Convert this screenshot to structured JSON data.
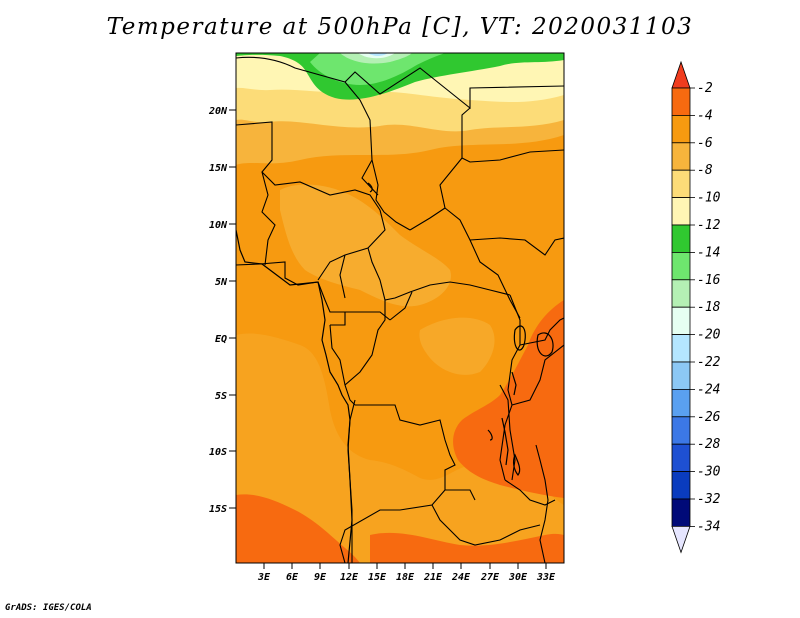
{
  "title": "Temperature at 500hPa [C], VT: 2020031103",
  "credit": "GrADS: IGES/COLA",
  "map": {
    "lat_labels": [
      "20N",
      "15N",
      "10N",
      "5N",
      "EQ",
      "5S",
      "10S",
      "15S"
    ],
    "lon_labels": [
      "3E",
      "6E",
      "9E",
      "12E",
      "15E",
      "18E",
      "21E",
      "24E",
      "27E",
      "30E",
      "33E"
    ]
  },
  "colorbar": {
    "labels": [
      "-2",
      "-4",
      "-6",
      "-8",
      "-10",
      "-12",
      "-14",
      "-16",
      "-18",
      "-20",
      "-22",
      "-24",
      "-26",
      "-28",
      "-30",
      "-32",
      "-34"
    ],
    "colors": [
      "#f03c1e",
      "#f76a10",
      "#f79a10",
      "#f7b43c",
      "#fcdc78",
      "#fff6b4",
      "#30c830",
      "#6ee66e",
      "#b4f0b4",
      "#e6fff2",
      "#b4e6ff",
      "#8cc8f5",
      "#5aa0f0",
      "#3c78e6",
      "#1e50d2",
      "#0a3cbe",
      "#000a78",
      "#e6e6ff"
    ]
  }
}
